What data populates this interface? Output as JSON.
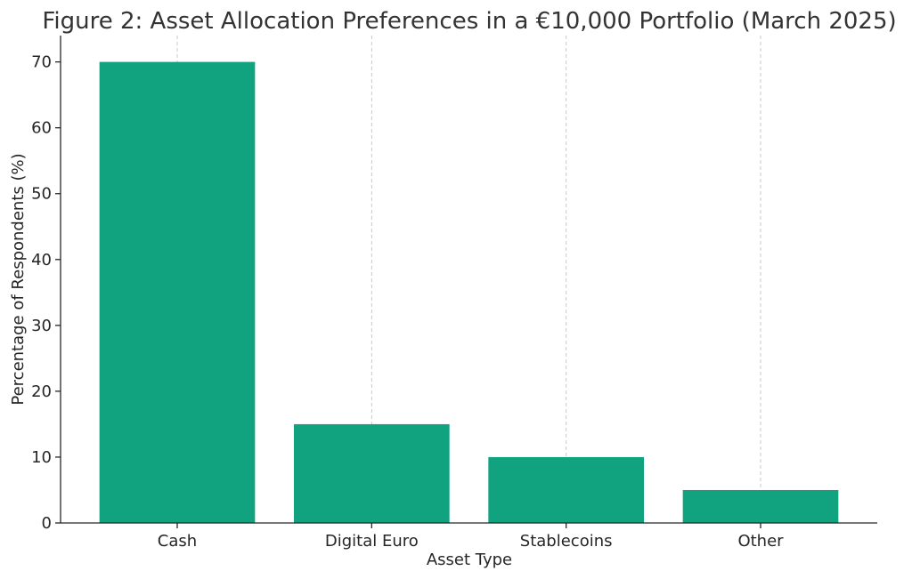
{
  "chart_data": {
    "type": "bar",
    "title": "Figure 2: Asset Allocation Preferences in a €10,000 Portfolio (March 2025)",
    "xlabel": "Asset Type",
    "ylabel": "Percentage of Respondents (%)",
    "categories": [
      "Cash",
      "Digital Euro",
      "Stablecoins",
      "Other"
    ],
    "values": [
      70,
      15,
      10,
      5
    ],
    "ylim": [
      0,
      74
    ],
    "yticks": [
      0,
      10,
      20,
      30,
      40,
      50,
      60,
      70
    ],
    "grid": "x-dashed",
    "bar_color": "#11a37f",
    "legend": "none"
  }
}
